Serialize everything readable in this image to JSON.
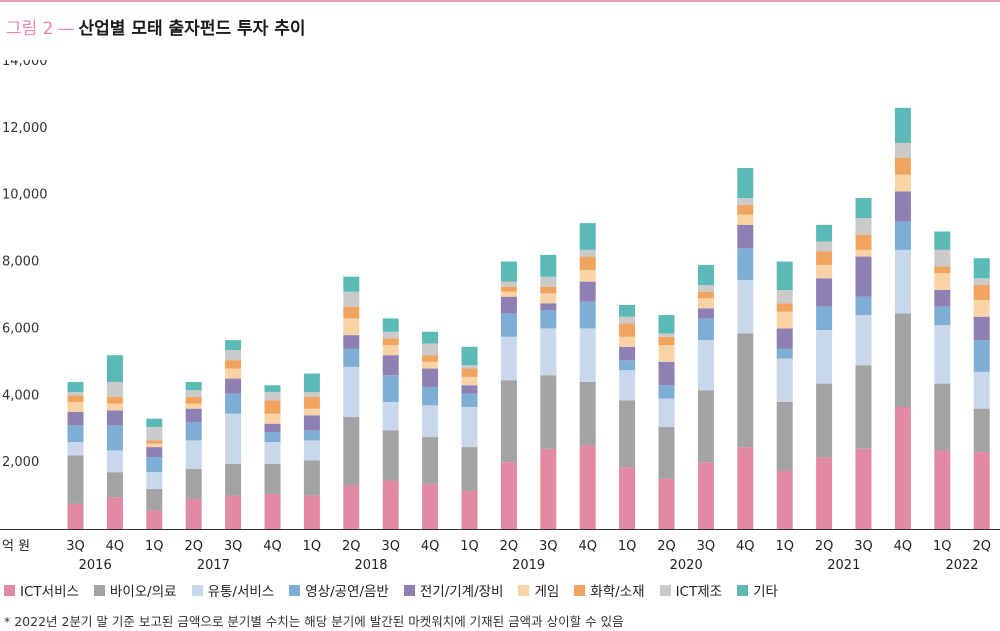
{
  "header": {
    "figure_number": "그림 2",
    "dash": "—",
    "title": "산업별 모태 출자펀드 투자 추이"
  },
  "footnote": "* 2022년 2분기 말 기준 보고된 금액으로 분기별 수치는 해당 분기에 발간된 마켓워치에 기재된 금액과 상이할 수 있음",
  "chart_data": {
    "type": "bar",
    "stacked": true,
    "unit_label": "억 원",
    "ylim": [
      0,
      14000
    ],
    "y_ticks": [
      2000,
      4000,
      6000,
      8000,
      10000,
      12000,
      14000
    ],
    "y_tick_labels": [
      "2,000",
      "4,000",
      "6,000",
      "8,000",
      "10,000",
      "12,000",
      "14,000"
    ],
    "grid": false,
    "legend_position": "bottom",
    "categories": [
      "3Q",
      "4Q",
      "1Q",
      "2Q",
      "3Q",
      "4Q",
      "1Q",
      "2Q",
      "3Q",
      "4Q",
      "1Q",
      "2Q",
      "3Q",
      "4Q",
      "1Q",
      "2Q",
      "3Q",
      "4Q",
      "1Q",
      "2Q",
      "3Q",
      "4Q",
      "1Q",
      "2Q"
    ],
    "year_labels": [
      {
        "label": "2016",
        "index": 0.5
      },
      {
        "label": "2017",
        "index": 3.5
      },
      {
        "label": "2018",
        "index": 7.5
      },
      {
        "label": "2019",
        "index": 11.5
      },
      {
        "label": "2020",
        "index": 15.5
      },
      {
        "label": "2021",
        "index": 19.5
      },
      {
        "label": "2022",
        "index": 22.5
      }
    ],
    "series": [
      {
        "name": "ICT서비스",
        "color": "#e28aa1",
        "values": [
          750,
          950,
          550,
          900,
          1000,
          1050,
          1000,
          1300,
          1450,
          1350,
          1150,
          2000,
          2400,
          2500,
          1850,
          1500,
          2000,
          2450,
          1750,
          2150,
          2400,
          3650,
          2350,
          2300
        ]
      },
      {
        "name": "바이오/의료",
        "color": "#a3a3a3",
        "values": [
          1450,
          750,
          650,
          900,
          950,
          900,
          1050,
          2050,
          1500,
          1400,
          1300,
          2450,
          2200,
          1900,
          2000,
          1550,
          2150,
          3400,
          2050,
          2200,
          2500,
          2800,
          2000,
          1300
        ]
      },
      {
        "name": "유통/서비스",
        "color": "#c8d7ea",
        "values": [
          400,
          650,
          500,
          850,
          1500,
          650,
          600,
          1500,
          850,
          950,
          1200,
          1300,
          1400,
          1600,
          900,
          850,
          1500,
          1600,
          1300,
          1600,
          1500,
          1900,
          1750,
          1100
        ]
      },
      {
        "name": "영상/공연/음반",
        "color": "#7eaed6",
        "values": [
          500,
          750,
          450,
          550,
          600,
          300,
          300,
          550,
          800,
          550,
          400,
          700,
          550,
          800,
          300,
          400,
          650,
          950,
          300,
          700,
          550,
          850,
          550,
          950
        ]
      },
      {
        "name": "전기/기계/장비",
        "color": "#8f80b4",
        "values": [
          400,
          450,
          300,
          400,
          450,
          250,
          450,
          400,
          600,
          550,
          250,
          500,
          200,
          600,
          400,
          700,
          300,
          700,
          600,
          850,
          1200,
          900,
          500,
          700
        ]
      },
      {
        "name": "게임",
        "color": "#f8d3a6",
        "values": [
          300,
          200,
          100,
          150,
          300,
          300,
          200,
          500,
          300,
          200,
          250,
          150,
          300,
          350,
          300,
          500,
          300,
          300,
          500,
          400,
          200,
          500,
          500,
          500
        ]
      },
      {
        "name": "화학/소재",
        "color": "#f0a460",
        "values": [
          200,
          200,
          100,
          200,
          250,
          400,
          350,
          350,
          200,
          200,
          250,
          150,
          200,
          400,
          400,
          250,
          200,
          300,
          250,
          400,
          450,
          500,
          200,
          450
        ]
      },
      {
        "name": "ICT제조",
        "color": "#cacaca",
        "values": [
          100,
          450,
          400,
          200,
          300,
          250,
          150,
          450,
          200,
          350,
          100,
          150,
          300,
          200,
          200,
          100,
          200,
          200,
          400,
          300,
          500,
          450,
          500,
          200
        ]
      },
      {
        "name": "기타",
        "color": "#5bb9b6",
        "values": [
          300,
          800,
          250,
          250,
          300,
          200,
          550,
          450,
          400,
          350,
          550,
          600,
          650,
          800,
          350,
          550,
          600,
          900,
          850,
          500,
          600,
          1050,
          550,
          600
        ]
      }
    ]
  }
}
